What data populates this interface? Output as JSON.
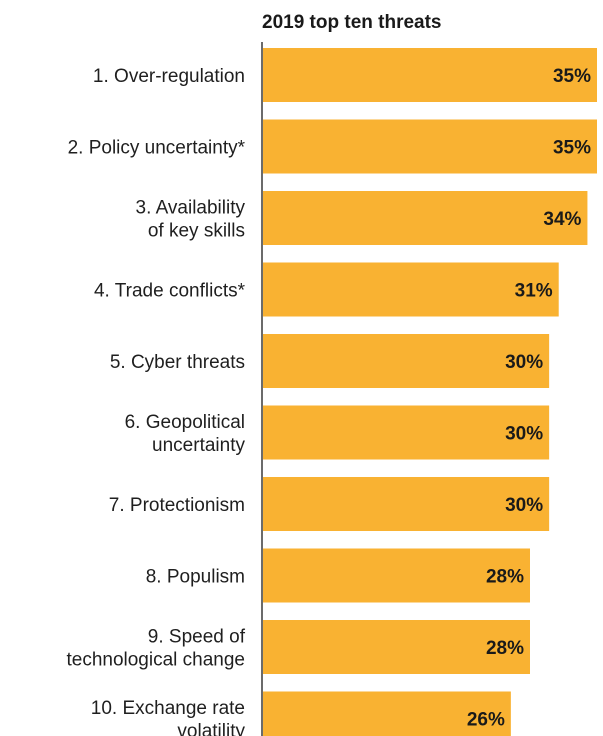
{
  "colors": {
    "bar": "#F9B232",
    "axis": "#6b6b6b",
    "text": "#1f1f1f"
  },
  "chart_data": {
    "type": "bar",
    "orientation": "horizontal",
    "title": "2019 top ten threats",
    "categories": [
      [
        "1. Over-regulation"
      ],
      [
        "2. Policy uncertainty*"
      ],
      [
        "3. Availability",
        "of key skills"
      ],
      [
        "4. Trade conflicts*"
      ],
      [
        "5. Cyber threats"
      ],
      [
        "6. Geopolitical",
        "uncertainty"
      ],
      [
        "7. Protectionism"
      ],
      [
        "8. Populism"
      ],
      [
        "9. Speed of",
        "technological change"
      ],
      [
        "10. Exchange rate",
        "volatility"
      ]
    ],
    "values": [
      35,
      35,
      34,
      31,
      30,
      30,
      30,
      28,
      28,
      26
    ],
    "value_labels": [
      "35%",
      "35%",
      "34%",
      "31%",
      "30%",
      "30%",
      "30%",
      "28%",
      "28%",
      "26%"
    ],
    "unit": "%",
    "xlim": [
      0,
      35
    ],
    "grid": false,
    "legend": "none"
  }
}
